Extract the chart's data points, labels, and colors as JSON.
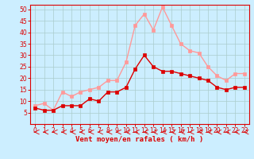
{
  "x": [
    0,
    1,
    2,
    3,
    4,
    5,
    6,
    7,
    8,
    9,
    10,
    11,
    12,
    13,
    14,
    15,
    16,
    17,
    18,
    19,
    20,
    21,
    22,
    23
  ],
  "vent_moyen": [
    7,
    6,
    6,
    8,
    8,
    8,
    11,
    10,
    14,
    14,
    16,
    24,
    30,
    25,
    23,
    23,
    22,
    21,
    20,
    19,
    16,
    15,
    16,
    16
  ],
  "vent_rafales": [
    8,
    9,
    6,
    14,
    12,
    14,
    15,
    16,
    19,
    19,
    27,
    43,
    48,
    41,
    51,
    43,
    35,
    32,
    31,
    25,
    21,
    19,
    22,
    22
  ],
  "bg_color": "#cceeff",
  "grid_color": "#aacccc",
  "line_moyen_color": "#dd0000",
  "line_rafales_color": "#ff9999",
  "arrow_color": "#dd0000",
  "xlabel": "Vent moyen/en rafales ( km/h )",
  "ylim": [
    0,
    52
  ],
  "xlim": [
    -0.5,
    23.5
  ],
  "yticks": [
    5,
    10,
    15,
    20,
    25,
    30,
    35,
    40,
    45,
    50
  ],
  "xticks": [
    0,
    1,
    2,
    3,
    4,
    5,
    6,
    7,
    8,
    9,
    10,
    11,
    12,
    13,
    14,
    15,
    16,
    17,
    18,
    19,
    20,
    21,
    22,
    23
  ],
  "tick_fontsize": 5.5,
  "xlabel_fontsize": 6.5,
  "marker_size": 2.5,
  "line_width": 1.0
}
